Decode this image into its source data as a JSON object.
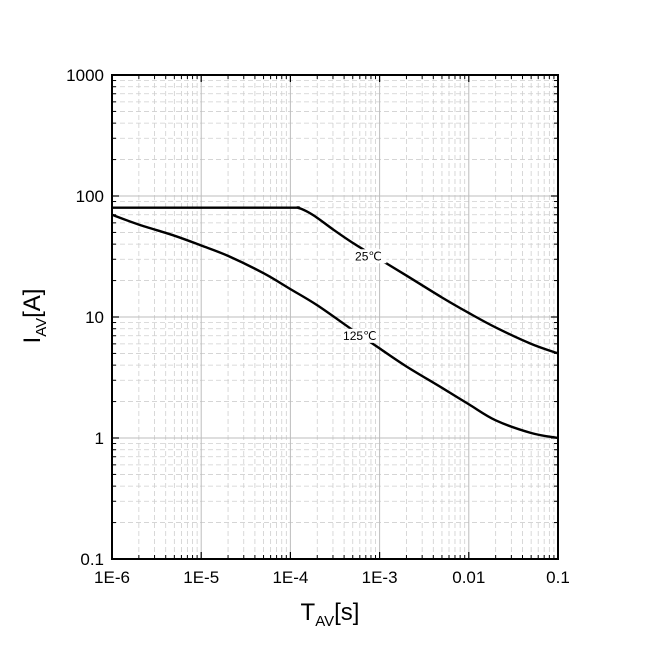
{
  "chart_data": {
    "type": "line",
    "x_scale": "log",
    "y_scale": "log",
    "xlim": [
      1e-06,
      0.1
    ],
    "ylim": [
      0.1,
      1000
    ],
    "grid": true,
    "xlabel": {
      "main": "T",
      "sub": "AV",
      "unit": "[s]"
    },
    "ylabel": {
      "main": "I",
      "sub": "AV",
      "unit": "[A]"
    },
    "x_ticks": [
      {
        "value": 1e-06,
        "label": "1E-6"
      },
      {
        "value": 1e-05,
        "label": "1E-5"
      },
      {
        "value": 0.0001,
        "label": "1E-4"
      },
      {
        "value": 0.001,
        "label": "1E-3"
      },
      {
        "value": 0.01,
        "label": "0.01"
      },
      {
        "value": 0.1,
        "label": "0.1"
      }
    ],
    "y_ticks": [
      {
        "value": 0.1,
        "label": "0.1"
      },
      {
        "value": 1,
        "label": "1"
      },
      {
        "value": 10,
        "label": "10"
      },
      {
        "value": 100,
        "label": "100"
      },
      {
        "value": 1000,
        "label": "1000"
      }
    ],
    "series": [
      {
        "name": "25℃",
        "label_at": {
          "x": 0.00075,
          "y": 30
        },
        "points": [
          [
            1e-06,
            80
          ],
          [
            1e-05,
            80
          ],
          [
            0.0001,
            80
          ],
          [
            0.00012,
            80
          ],
          [
            0.00015,
            75
          ],
          [
            0.0002,
            66
          ],
          [
            0.0003,
            53
          ],
          [
            0.0005,
            41
          ],
          [
            0.001,
            30
          ],
          [
            0.002,
            22
          ],
          [
            0.005,
            14.5
          ],
          [
            0.01,
            10.8
          ],
          [
            0.02,
            8.2
          ],
          [
            0.05,
            6
          ],
          [
            0.1,
            5
          ]
        ]
      },
      {
        "name": "125℃",
        "label_at": {
          "x": 0.0006,
          "y": 6.6
        },
        "points": [
          [
            1e-06,
            70
          ],
          [
            2e-06,
            58
          ],
          [
            5e-06,
            47
          ],
          [
            1e-05,
            39
          ],
          [
            2e-05,
            32
          ],
          [
            5e-05,
            23
          ],
          [
            0.0001,
            17
          ],
          [
            0.0002,
            12.5
          ],
          [
            0.0005,
            7.8
          ],
          [
            0.001,
            5.5
          ],
          [
            0.002,
            3.9
          ],
          [
            0.005,
            2.6
          ],
          [
            0.01,
            1.9
          ],
          [
            0.02,
            1.4
          ],
          [
            0.05,
            1.1
          ],
          [
            0.1,
            1.0
          ]
        ]
      }
    ]
  }
}
